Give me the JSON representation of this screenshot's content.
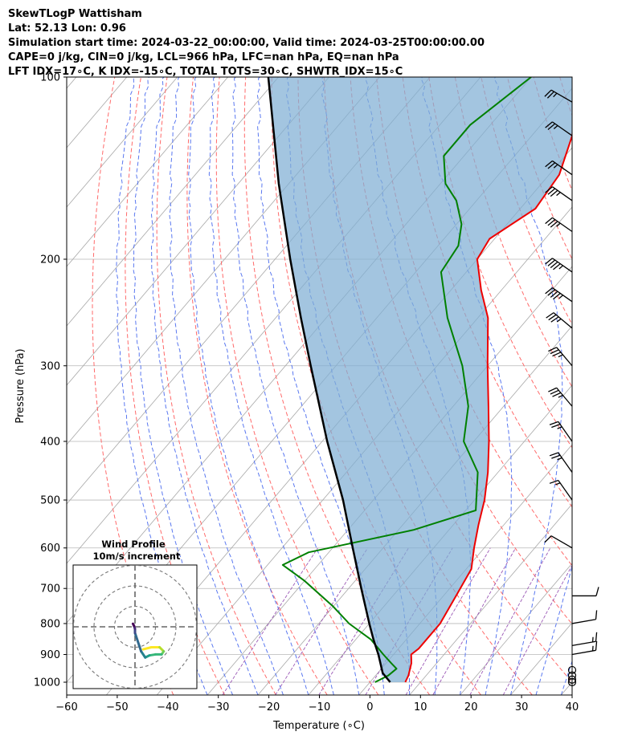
{
  "header": {
    "line1": "SkewTLogP Wattisham",
    "line2": "Lat: 52.13   Lon: 0.96",
    "line3": "Simulation start time: 2024-03-22_00:00:00, Valid time: 2024-03-25T00:00:00.00",
    "line4": "CAPE=0 j/kg, CIN=0 j/kg, LCL=966 hPa, LFC=nan hPa, EQ=nan hPa",
    "line5": "LFT IDX=17∘C, K IDX=-15∘C, TOTAL TOTS=30∘C, SHWTR_IDX=15∘C"
  },
  "colors": {
    "temperature": "#ee0000",
    "dewpoint": "#008000",
    "parcel": "#000000",
    "cin_shading": "#7fafd4",
    "dry_adiabats": "#ff6a6a",
    "moist_adiabats": "#5a78f0",
    "mixing_ratio": "#9b59b6",
    "isotherms": "#a8a8a8",
    "isobars": "#b8b8b8"
  },
  "chart_data": [
    {
      "type": "line",
      "subtype": "skew-t log-p",
      "xlabel": "Temperature (∘C)",
      "ylabel": "Pressure (hPa)",
      "xlim": [
        -60,
        40
      ],
      "ylim": [
        1050,
        100
      ],
      "y_scale": "log",
      "x_ticks": [
        -60,
        -50,
        -40,
        -30,
        -20,
        -10,
        0,
        10,
        20,
        30,
        40
      ],
      "y_ticks": [
        100,
        200,
        300,
        400,
        500,
        600,
        700,
        800,
        900,
        1000
      ],
      "grid": true,
      "series": [
        {
          "role": "temperature",
          "points": [
            {
              "p": 1000,
              "t": 7
            },
            {
              "p": 975,
              "t": 6.5
            },
            {
              "p": 930,
              "t": 5
            },
            {
              "p": 900,
              "t": 3.5
            },
            {
              "p": 880,
              "t": 4
            },
            {
              "p": 800,
              "t": 4
            },
            {
              "p": 720,
              "t": 2.5
            },
            {
              "p": 650,
              "t": 1
            },
            {
              "p": 600,
              "t": -2
            },
            {
              "p": 550,
              "t": -5
            },
            {
              "p": 500,
              "t": -8
            },
            {
              "p": 450,
              "t": -12
            },
            {
              "p": 400,
              "t": -17
            },
            {
              "p": 350,
              "t": -23
            },
            {
              "p": 300,
              "t": -30
            },
            {
              "p": 250,
              "t": -38
            },
            {
              "p": 225,
              "t": -44
            },
            {
              "p": 200,
              "t": -50
            },
            {
              "p": 185,
              "t": -51
            },
            {
              "p": 165,
              "t": -47
            },
            {
              "p": 145,
              "t": -48
            },
            {
              "p": 125,
              "t": -52
            },
            {
              "p": 110,
              "t": -57
            },
            {
              "p": 100,
              "t": -60
            }
          ]
        },
        {
          "role": "dewpoint",
          "points": [
            {
              "p": 1000,
              "t": 1
            },
            {
              "p": 975,
              "t": 2.5
            },
            {
              "p": 950,
              "t": 3
            },
            {
              "p": 930,
              "t": 1
            },
            {
              "p": 900,
              "t": -2
            },
            {
              "p": 850,
              "t": -7
            },
            {
              "p": 800,
              "t": -14
            },
            {
              "p": 750,
              "t": -20
            },
            {
              "p": 680,
              "t": -30
            },
            {
              "p": 640,
              "t": -37
            },
            {
              "p": 610,
              "t": -34
            },
            {
              "p": 560,
              "t": -17
            },
            {
              "p": 520,
              "t": -8
            },
            {
              "p": 450,
              "t": -14
            },
            {
              "p": 400,
              "t": -22
            },
            {
              "p": 350,
              "t": -27
            },
            {
              "p": 300,
              "t": -35
            },
            {
              "p": 250,
              "t": -46
            },
            {
              "p": 210,
              "t": -55
            },
            {
              "p": 190,
              "t": -56
            },
            {
              "p": 175,
              "t": -59
            },
            {
              "p": 160,
              "t": -64
            },
            {
              "p": 150,
              "t": -69
            },
            {
              "p": 135,
              "t": -74
            },
            {
              "p": 120,
              "t": -74
            },
            {
              "p": 100,
              "t": -70
            }
          ]
        },
        {
          "role": "parcel",
          "points": [
            {
              "p": 1000,
              "t": 4
            },
            {
              "p": 966,
              "t": 1
            },
            {
              "p": 900,
              "t": -3
            },
            {
              "p": 850,
              "t": -6.5
            },
            {
              "p": 800,
              "t": -10
            },
            {
              "p": 700,
              "t": -17.5
            },
            {
              "p": 600,
              "t": -26
            },
            {
              "p": 500,
              "t": -36
            },
            {
              "p": 400,
              "t": -49
            },
            {
              "p": 300,
              "t": -65
            },
            {
              "p": 250,
              "t": -75
            },
            {
              "p": 200,
              "t": -87
            },
            {
              "p": 150,
              "t": -102
            },
            {
              "p": 100,
              "t": -122
            }
          ]
        }
      ]
    },
    {
      "type": "wind_barbs",
      "title": "",
      "levels": [
        {
          "p": 1000,
          "speed_kt": 0,
          "dir_deg": 0
        },
        {
          "p": 990,
          "speed_kt": 0,
          "dir_deg": 0
        },
        {
          "p": 975,
          "speed_kt": 0,
          "dir_deg": 0
        },
        {
          "p": 955,
          "speed_kt": 0,
          "dir_deg": 0
        },
        {
          "p": 900,
          "speed_kt": 15,
          "dir_deg": 80
        },
        {
          "p": 870,
          "speed_kt": 15,
          "dir_deg": 80
        },
        {
          "p": 800,
          "speed_kt": 10,
          "dir_deg": 80
        },
        {
          "p": 720,
          "speed_kt": 10,
          "dir_deg": 90
        },
        {
          "p": 600,
          "speed_kt": 10,
          "dir_deg": 300
        },
        {
          "p": 500,
          "speed_kt": 15,
          "dir_deg": 325
        },
        {
          "p": 450,
          "speed_kt": 25,
          "dir_deg": 325
        },
        {
          "p": 400,
          "speed_kt": 25,
          "dir_deg": 325
        },
        {
          "p": 350,
          "speed_kt": 35,
          "dir_deg": 320
        },
        {
          "p": 300,
          "speed_kt": 35,
          "dir_deg": 320
        },
        {
          "p": 260,
          "speed_kt": 35,
          "dir_deg": 310
        },
        {
          "p": 235,
          "speed_kt": 45,
          "dir_deg": 305
        },
        {
          "p": 210,
          "speed_kt": 45,
          "dir_deg": 305
        },
        {
          "p": 180,
          "speed_kt": 35,
          "dir_deg": 305
        },
        {
          "p": 160,
          "speed_kt": 35,
          "dir_deg": 305
        },
        {
          "p": 145,
          "speed_kt": 25,
          "dir_deg": 305
        },
        {
          "p": 125,
          "speed_kt": 25,
          "dir_deg": 305
        },
        {
          "p": 110,
          "speed_kt": 25,
          "dir_deg": 300
        }
      ]
    },
    {
      "type": "scatter",
      "subtype": "hodograph",
      "title": "Wind Profile",
      "subtitle": "10m/s increment",
      "rings_ms": [
        10,
        20,
        30
      ],
      "points": [
        {
          "u": 4,
          "v": -11
        },
        {
          "u": 8,
          "v": -10
        },
        {
          "u": 12,
          "v": -10
        },
        {
          "u": 14,
          "v": -12
        },
        {
          "u": 13,
          "v": -13.5
        },
        {
          "u": 10,
          "v": -13.5
        },
        {
          "u": 7,
          "v": -14
        },
        {
          "u": 5,
          "v": -15
        },
        {
          "u": 3,
          "v": -12
        },
        {
          "u": 2,
          "v": -9
        },
        {
          "u": 0,
          "v": -3
        },
        {
          "u": 0,
          "v": -1
        },
        {
          "u": -0.5,
          "v": 0.5
        },
        {
          "u": -1,
          "v": 1.5
        }
      ]
    }
  ]
}
